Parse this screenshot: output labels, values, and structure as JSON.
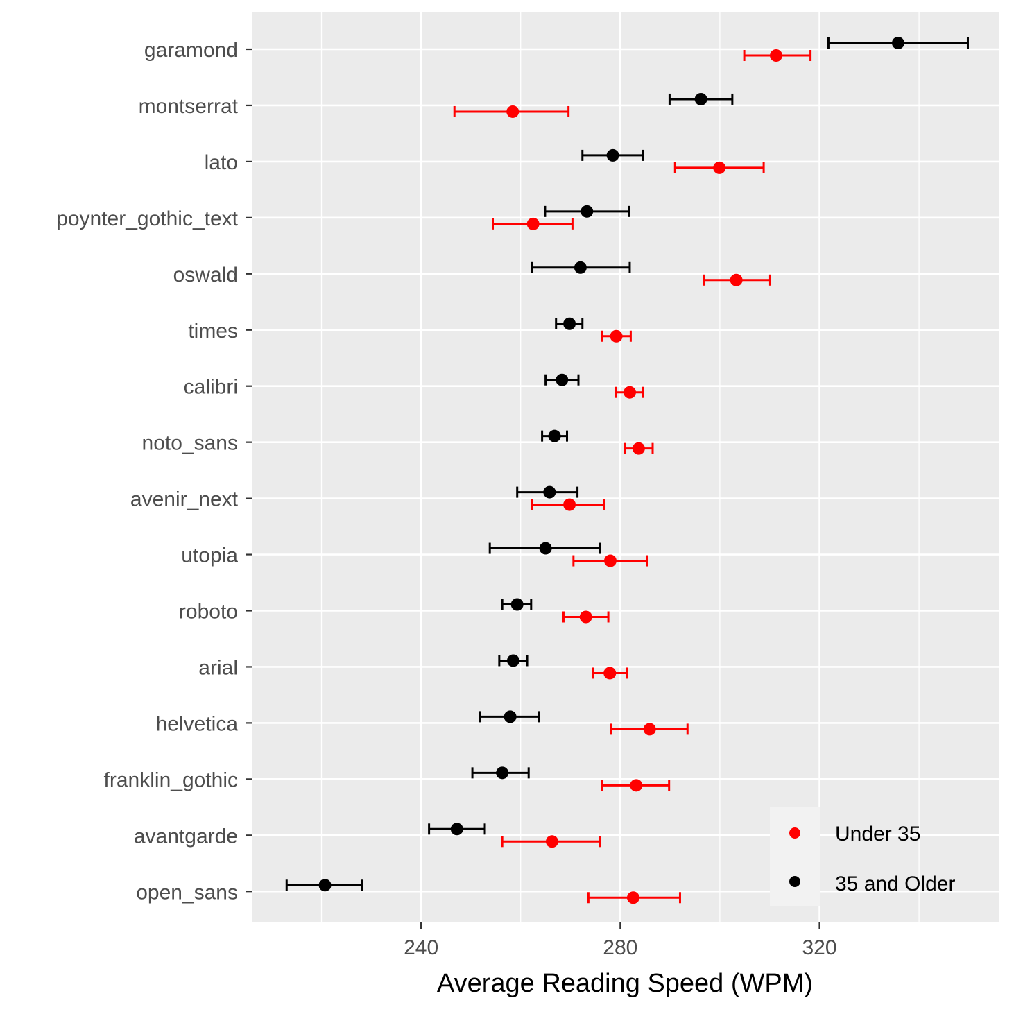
{
  "chart_data": {
    "type": "scatter",
    "subtype": "dot-plot-with-error-bars",
    "xlabel": "Average Reading Speed (WPM)",
    "ylabel": "",
    "xlim": [
      206,
      356
    ],
    "x_ticks": [
      240,
      280,
      320
    ],
    "grid": true,
    "legend_position": "bottom-right-inside",
    "categories": [
      "garamond",
      "montserrat",
      "lato",
      "poynter_gothic_text",
      "oswald",
      "times",
      "calibri",
      "noto_sans",
      "avenir_next",
      "utopia",
      "roboto",
      "arial",
      "helvetica",
      "franklin_gothic",
      "avantgarde",
      "open_sans"
    ],
    "series": [
      {
        "name": "Under 35",
        "color": "#ff0000",
        "values": [
          311.3,
          258.4,
          299.9,
          262.5,
          303.3,
          279.2,
          281.9,
          283.7,
          269.8,
          278.0,
          273.1,
          277.9,
          285.9,
          283.2,
          266.3,
          282.6
        ],
        "lower": [
          304.9,
          246.7,
          291.0,
          254.4,
          296.8,
          276.3,
          279.1,
          280.9,
          262.2,
          270.6,
          268.6,
          274.5,
          278.2,
          276.3,
          256.3,
          273.6
        ],
        "upper": [
          318.2,
          269.6,
          308.8,
          270.4,
          310.1,
          282.1,
          284.6,
          286.5,
          276.7,
          285.4,
          277.6,
          281.3,
          293.5,
          289.8,
          275.9,
          292.0
        ]
      },
      {
        "name": "35 and Older",
        "color": "#000000",
        "values": [
          335.8,
          296.2,
          278.5,
          273.3,
          272.0,
          269.8,
          268.3,
          266.8,
          265.8,
          265.0,
          259.3,
          258.5,
          257.9,
          256.3,
          247.2,
          220.7
        ],
        "lower": [
          321.8,
          289.9,
          272.4,
          264.9,
          262.3,
          267.1,
          265.0,
          264.3,
          259.3,
          253.8,
          256.3,
          255.7,
          251.8,
          250.3,
          241.6,
          213.0
        ],
        "upper": [
          349.8,
          302.5,
          284.6,
          281.7,
          281.9,
          272.4,
          271.6,
          269.3,
          271.4,
          275.9,
          262.1,
          261.3,
          263.7,
          261.6,
          252.8,
          228.2
        ]
      }
    ]
  }
}
